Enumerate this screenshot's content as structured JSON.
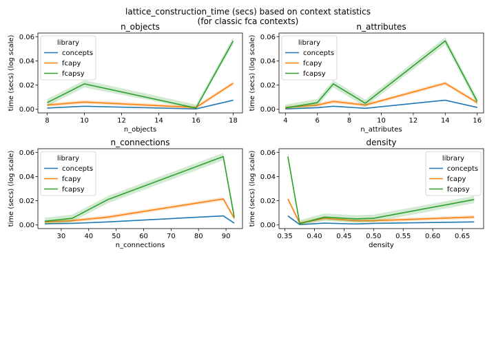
{
  "figure": {
    "title_line1": "lattice_construction_time (secs) based on context statistics",
    "title_line2": "(for classic fca contexts)"
  },
  "colors": {
    "concepts": "#1f77b4",
    "fcapy": "#ff7f0e",
    "fcapsy": "#2ca02c"
  },
  "chart_data": [
    {
      "type": "line",
      "title": "n_objects",
      "xlabel": "n_objects",
      "ylabel": "time (secs) (log scale)",
      "xlim": [
        7.5,
        18.5
      ],
      "ylim": [
        -0.003,
        0.063
      ],
      "xticks": [
        8,
        10,
        12,
        14,
        16,
        18
      ],
      "xtick_labels": [
        "8",
        "10",
        "12",
        "14",
        "16",
        "18"
      ],
      "yticks": [
        0,
        0.02,
        0.04,
        0.06
      ],
      "ytick_labels": [
        "0.00",
        "0.02",
        "0.04",
        "0.06"
      ],
      "legend": {
        "title": "library",
        "position": "upper left"
      },
      "series": [
        {
          "name": "concepts",
          "x": [
            8,
            10,
            16,
            18
          ],
          "y": [
            0.001,
            0.0025,
            0.0003,
            0.0075
          ],
          "band": 0.0004
        },
        {
          "name": "fcapy",
          "x": [
            8,
            10,
            16,
            18
          ],
          "y": [
            0.0035,
            0.006,
            0.0015,
            0.0215
          ],
          "band": 0.0015
        },
        {
          "name": "fcapsy",
          "x": [
            8,
            10,
            16,
            18
          ],
          "y": [
            0.0055,
            0.021,
            0.001,
            0.0565
          ],
          "band": 0.003
        }
      ]
    },
    {
      "type": "line",
      "title": "n_attributes",
      "xlabel": "n_attributes",
      "ylabel": "time (secs) (log scale)",
      "xlim": [
        3.6,
        16.4
      ],
      "ylim": [
        -0.003,
        0.063
      ],
      "xticks": [
        4,
        6,
        8,
        10,
        12,
        14,
        16
      ],
      "xtick_labels": [
        "4",
        "6",
        "8",
        "10",
        "12",
        "14",
        "16"
      ],
      "yticks": [
        0,
        0.02,
        0.04,
        0.06
      ],
      "ytick_labels": [
        "0.00",
        "0.02",
        "0.04",
        "0.06"
      ],
      "legend": {
        "title": "library",
        "position": "upper left"
      },
      "series": [
        {
          "name": "concepts",
          "x": [
            4,
            6,
            7,
            9,
            14,
            16
          ],
          "y": [
            0.0003,
            0.0013,
            0.0025,
            0.0008,
            0.0075,
            0.0015
          ],
          "band": 0.0004
        },
        {
          "name": "fcapy",
          "x": [
            4,
            6,
            7,
            9,
            14,
            16
          ],
          "y": [
            0.0015,
            0.0035,
            0.0065,
            0.0035,
            0.0215,
            0.0055
          ],
          "band": 0.0015
        },
        {
          "name": "fcapsy",
          "x": [
            4,
            6,
            7,
            9,
            14,
            16
          ],
          "y": [
            0.001,
            0.0055,
            0.021,
            0.005,
            0.0565,
            0.0065
          ],
          "band": 0.003
        }
      ]
    },
    {
      "type": "line",
      "title": "n_connections",
      "xlabel": "n_connections",
      "ylabel": "time (secs) (log scale)",
      "xlim": [
        21.5,
        96.0
      ],
      "ylim": [
        -0.003,
        0.063
      ],
      "xticks": [
        30,
        40,
        50,
        60,
        70,
        80,
        90
      ],
      "xtick_labels": [
        "30",
        "40",
        "50",
        "60",
        "70",
        "80",
        "90"
      ],
      "yticks": [
        0,
        0.02,
        0.04,
        0.06
      ],
      "ytick_labels": [
        "0.00",
        "0.02",
        "0.04",
        "0.06"
      ],
      "legend": {
        "title": "library",
        "position": "upper left"
      },
      "series": [
        {
          "name": "concepts",
          "x": [
            24,
            34,
            47,
            89,
            93
          ],
          "y": [
            0.001,
            0.0013,
            0.0025,
            0.0075,
            0.0015
          ],
          "band": 0.0004
        },
        {
          "name": "fcapy",
          "x": [
            24,
            34,
            47,
            89,
            93
          ],
          "y": [
            0.0025,
            0.0035,
            0.0065,
            0.0215,
            0.0055
          ],
          "band": 0.0015
        },
        {
          "name": "fcapsy",
          "x": [
            24,
            34,
            47,
            89,
            93
          ],
          "y": [
            0.003,
            0.0055,
            0.021,
            0.0565,
            0.0065
          ],
          "band": 0.003
        }
      ]
    },
    {
      "type": "line",
      "title": "density",
      "xlabel": "density",
      "ylabel": "time (secs) (log scale)",
      "xlim": [
        0.34,
        0.686
      ],
      "ylim": [
        -0.003,
        0.063
      ],
      "xticks": [
        0.35,
        0.4,
        0.45,
        0.5,
        0.55,
        0.6,
        0.65
      ],
      "xtick_labels": [
        "0.35",
        "0.40",
        "0.45",
        "0.50",
        "0.55",
        "0.60",
        "0.65"
      ],
      "yticks": [
        0,
        0.02,
        0.04,
        0.06
      ],
      "ytick_labels": [
        "0.00",
        "0.02",
        "0.04",
        "0.06"
      ],
      "legend": {
        "title": "library",
        "position": "upper right"
      },
      "series": [
        {
          "name": "concepts",
          "x": [
            0.355,
            0.375,
            0.417,
            0.47,
            0.5,
            0.67
          ],
          "y": [
            0.0075,
            0.0003,
            0.0015,
            0.0008,
            0.0013,
            0.0025
          ],
          "band": 0.0004
        },
        {
          "name": "fcapy",
          "x": [
            0.355,
            0.375,
            0.417,
            0.47,
            0.5,
            0.67
          ],
          "y": [
            0.0215,
            0.0015,
            0.0055,
            0.0035,
            0.0035,
            0.0065
          ],
          "band": 0.0015
        },
        {
          "name": "fcapsy",
          "x": [
            0.355,
            0.375,
            0.417,
            0.47,
            0.5,
            0.67
          ],
          "y": [
            0.0565,
            0.001,
            0.0065,
            0.005,
            0.0055,
            0.021
          ],
          "band": 0.003
        }
      ]
    }
  ]
}
